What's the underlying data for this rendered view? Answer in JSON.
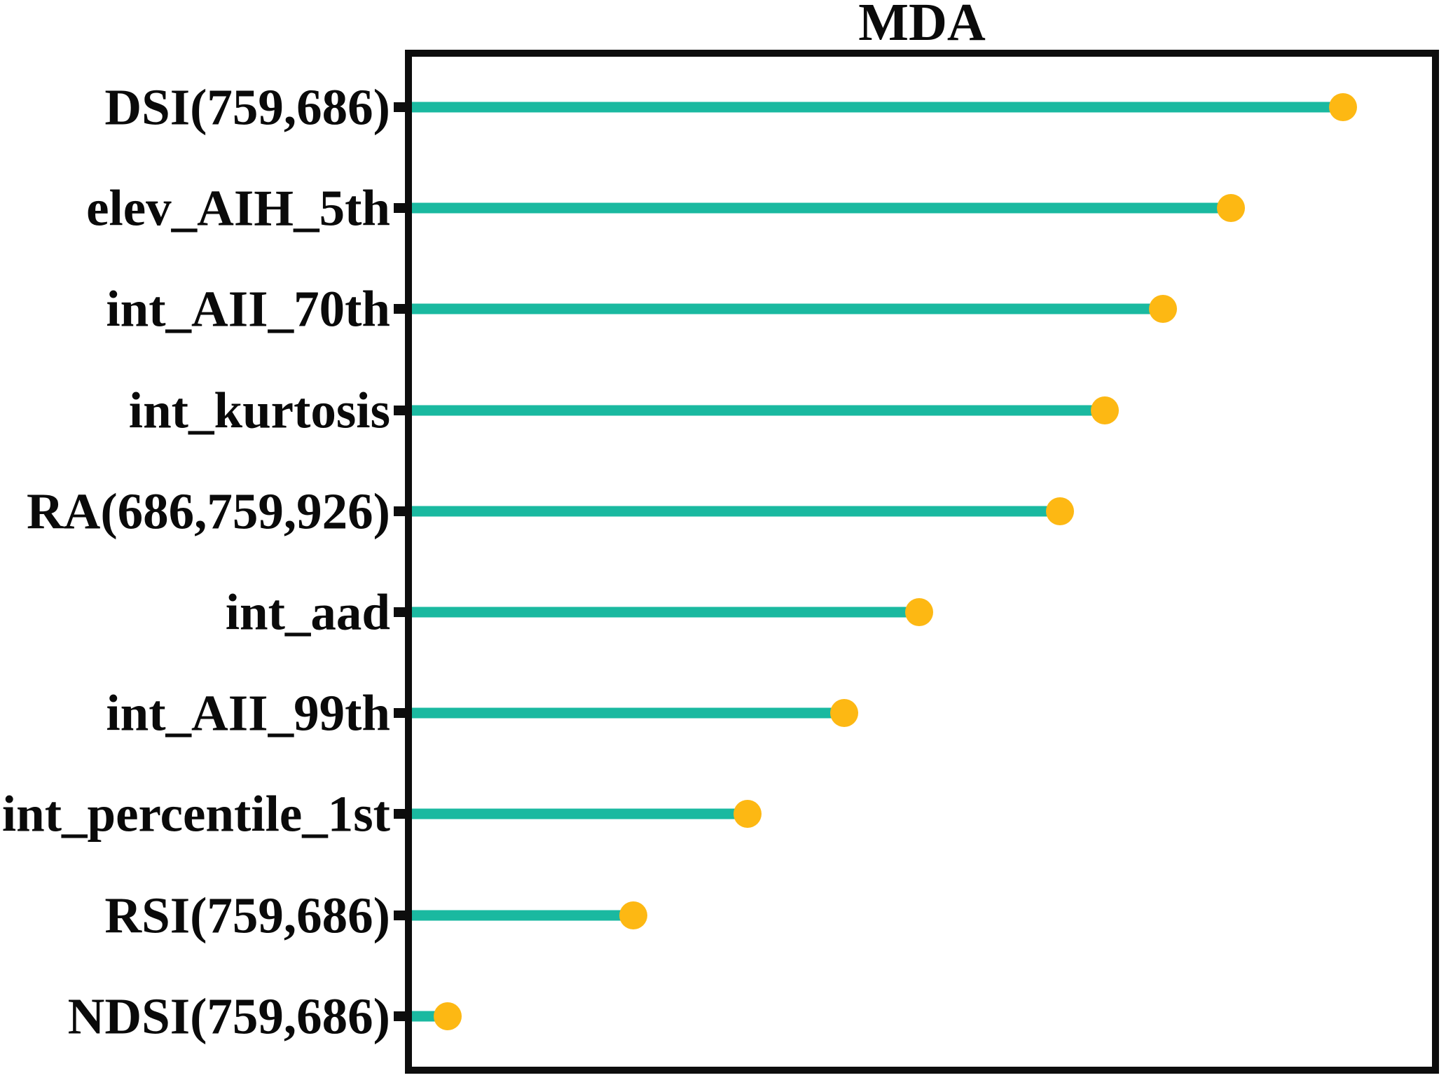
{
  "chart_data": {
    "type": "lollipop",
    "orientation": "horizontal",
    "title": "MDA",
    "xlabel": "",
    "ylabel": "",
    "grid": false,
    "legend": "none",
    "x_axis_tick_labels_visible": false,
    "xlim_relative": [
      0,
      1
    ],
    "categories": [
      "DSI(759,686)",
      "elev_AIH_5th",
      "int_AII_70th",
      "int_kurtosis",
      "RA(686,759,926)",
      "int_aad",
      "int_AII_99th",
      "int_percentile_1st",
      "RSI(759,686)",
      "NDSI(759,686)"
    ],
    "values_relative": [
      0.913,
      0.803,
      0.736,
      0.679,
      0.635,
      0.497,
      0.424,
      0.329,
      0.217,
      0.035
    ],
    "colors": {
      "line": "#1ab9a0",
      "marker": "#fdb813",
      "axis": "#0d0d0d",
      "label_text": "#0a0a0a"
    }
  }
}
